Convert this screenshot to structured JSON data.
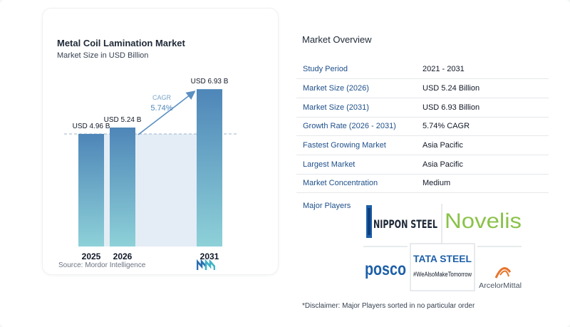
{
  "chart_data": {
    "type": "bar",
    "title": "Metal Coil Lamination Market",
    "subtitle": "Market Size in USD Billion",
    "categories": [
      "2025",
      "2026",
      "2031"
    ],
    "values": [
      4.96,
      5.24,
      6.93
    ],
    "value_labels": [
      "USD 4.96 B",
      "USD 5.24 B",
      "USD 6.93 B"
    ],
    "cagr_label": "CAGR",
    "cagr_value": "5.74%",
    "ylim": [
      0,
      7.5
    ],
    "grid": false,
    "colors": {
      "bar_top": "#4e86b8",
      "bar_bottom": "#8ed1d8",
      "band": "#e4edf5",
      "dash": "#9db5cc",
      "arrow": "#5a8fc2"
    }
  },
  "source": "Source: Mordor Intelligence",
  "overview": {
    "title": "Market Overview",
    "rows": [
      {
        "key": "Study Period",
        "value": "2021 - 2031"
      },
      {
        "key": "Market Size (2026)",
        "value": "USD 5.24 Billion"
      },
      {
        "key": "Market Size (2031)",
        "value": "USD 6.93 Billion"
      },
      {
        "key": "Growth Rate (2026 - 2031)",
        "value": "5.74% CAGR"
      },
      {
        "key": "Fastest Growing Market",
        "value": "Asia Pacific"
      },
      {
        "key": "Largest Market",
        "value": "Asia Pacific"
      },
      {
        "key": "Market Concentration",
        "value": "Medium"
      }
    ],
    "players_label": "Major Players",
    "players": {
      "nippon": "NIPPON STEEL",
      "novelis": "Novelis",
      "posco": "posco",
      "tata": "TATA STEEL",
      "tata_tag": "#WeAlsoMakeTomorrow",
      "arcelor": "ArcelorMittal"
    },
    "disclaimer": "*Disclaimer: Major Players sorted in no particular order"
  }
}
